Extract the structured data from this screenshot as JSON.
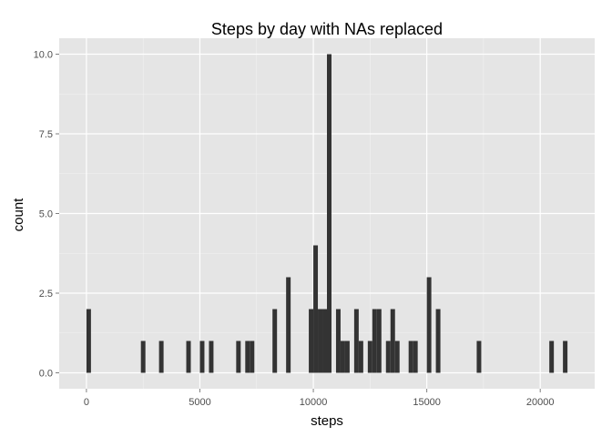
{
  "chart_data": {
    "type": "histogram",
    "title": "Steps by day with NAs replaced",
    "xlabel": "steps",
    "ylabel": "count",
    "xlim": [
      -1200,
      22400
    ],
    "ylim": [
      -0.5,
      10.5
    ],
    "x_ticks": [
      0,
      5000,
      10000,
      15000,
      20000
    ],
    "x_tick_labels": [
      "0",
      "5000",
      "10000",
      "15000",
      "20000"
    ],
    "y_ticks": [
      0,
      2.5,
      5,
      7.5,
      10
    ],
    "y_tick_labels": [
      "0.0",
      "2.5",
      "5.0",
      "7.5",
      "10.0"
    ],
    "grid": true,
    "bin_width": 200,
    "bins": [
      {
        "x": 100,
        "count": 2
      },
      {
        "x": 2500,
        "count": 1
      },
      {
        "x": 3300,
        "count": 1
      },
      {
        "x": 4500,
        "count": 1
      },
      {
        "x": 5100,
        "count": 1
      },
      {
        "x": 5500,
        "count": 1
      },
      {
        "x": 6700,
        "count": 1
      },
      {
        "x": 7100,
        "count": 1
      },
      {
        "x": 7300,
        "count": 1
      },
      {
        "x": 8300,
        "count": 2
      },
      {
        "x": 8900,
        "count": 3
      },
      {
        "x": 9900,
        "count": 2
      },
      {
        "x": 10100,
        "count": 4
      },
      {
        "x": 10300,
        "count": 2
      },
      {
        "x": 10500,
        "count": 2
      },
      {
        "x": 10700,
        "count": 10
      },
      {
        "x": 11100,
        "count": 2
      },
      {
        "x": 11300,
        "count": 1
      },
      {
        "x": 11500,
        "count": 1
      },
      {
        "x": 11900,
        "count": 2
      },
      {
        "x": 12100,
        "count": 1
      },
      {
        "x": 12500,
        "count": 1
      },
      {
        "x": 12700,
        "count": 2
      },
      {
        "x": 12900,
        "count": 2
      },
      {
        "x": 13300,
        "count": 1
      },
      {
        "x": 13500,
        "count": 2
      },
      {
        "x": 13700,
        "count": 1
      },
      {
        "x": 14300,
        "count": 1
      },
      {
        "x": 14500,
        "count": 1
      },
      {
        "x": 15100,
        "count": 3
      },
      {
        "x": 15500,
        "count": 2
      },
      {
        "x": 17300,
        "count": 1
      },
      {
        "x": 20500,
        "count": 1
      },
      {
        "x": 21100,
        "count": 1
      }
    ],
    "colors": {
      "panel_background": "#e5e5e5",
      "major_grid": "#ffffff",
      "minor_grid": "#f2f2f2",
      "bar_fill": "#333333"
    }
  }
}
